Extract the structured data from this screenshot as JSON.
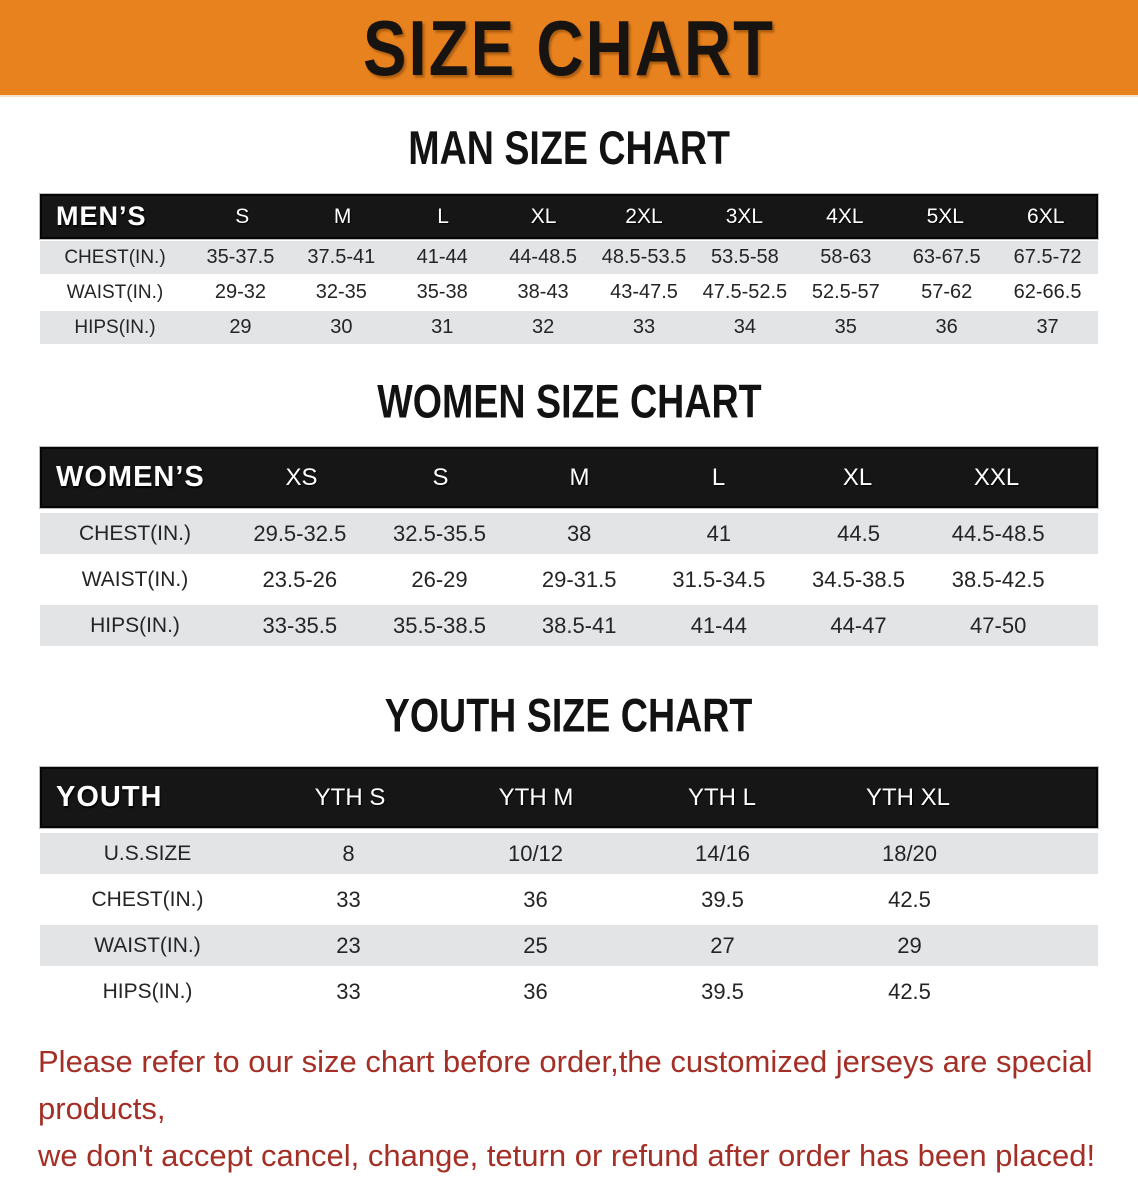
{
  "banner": {
    "title": "SIZE CHART"
  },
  "colors": {
    "banner_bg": "#E8821E",
    "bar_bg": "#161616",
    "row_alt_bg": "#E3E4E6",
    "note_color": "#A42F26"
  },
  "men": {
    "heading": "MAN SIZE CHART",
    "header_label": "MEN’S",
    "sizes": [
      "S",
      "M",
      "L",
      "XL",
      "2XL",
      "3XL",
      "4XL",
      "5XL",
      "6XL"
    ],
    "rows": [
      {
        "label": "CHEST(IN.)",
        "values": [
          "35-37.5",
          "37.5-41",
          "41-44",
          "44-48.5",
          "48.5-53.5",
          "53.5-58",
          "58-63",
          "63-67.5",
          "67.5-72"
        ]
      },
      {
        "label": "WAIST(IN.)",
        "values": [
          "29-32",
          "32-35",
          "35-38",
          "38-43",
          "43-47.5",
          "47.5-52.5",
          "52.5-57",
          "57-62",
          "62-66.5"
        ]
      },
      {
        "label": "HIPS(IN.)",
        "values": [
          "29",
          "30",
          "31",
          "32",
          "33",
          "34",
          "35",
          "36",
          "37"
        ]
      }
    ]
  },
  "women": {
    "heading": "WOMEN SIZE CHART",
    "header_label": "WOMEN’S",
    "sizes": [
      "XS",
      "S",
      "M",
      "L",
      "XL",
      "XXL"
    ],
    "rows": [
      {
        "label": "CHEST(IN.)",
        "values": [
          "29.5-32.5",
          "32.5-35.5",
          "38",
          "41",
          "44.5",
          "44.5-48.5"
        ]
      },
      {
        "label": "WAIST(IN.)",
        "values": [
          "23.5-26",
          "26-29",
          "29-31.5",
          "31.5-34.5",
          "34.5-38.5",
          "38.5-42.5"
        ]
      },
      {
        "label": "HIPS(IN.)",
        "values": [
          "33-35.5",
          "35.5-38.5",
          "38.5-41",
          "41-44",
          "44-47",
          "47-50"
        ]
      }
    ]
  },
  "youth": {
    "heading": "YOUTH SIZE CHART",
    "header_label": "YOUTH",
    "sizes": [
      "YTH S",
      "YTH M",
      "YTH L",
      "YTH XL"
    ],
    "rows": [
      {
        "label": "U.S.SIZE",
        "values": [
          "8",
          "10/12",
          "14/16",
          "18/20"
        ]
      },
      {
        "label": "CHEST(IN.)",
        "values": [
          "33",
          "36",
          "39.5",
          "42.5"
        ]
      },
      {
        "label": "WAIST(IN.)",
        "values": [
          "23",
          "25",
          "27",
          "29"
        ]
      },
      {
        "label": "HIPS(IN.)",
        "values": [
          "33",
          "36",
          "39.5",
          "42.5"
        ]
      }
    ]
  },
  "note": {
    "line1": "Please refer to our size chart before order,the customized jerseys are special products,",
    "line2": "we don't accept cancel, change, teturn or refund after order has been placed!"
  }
}
